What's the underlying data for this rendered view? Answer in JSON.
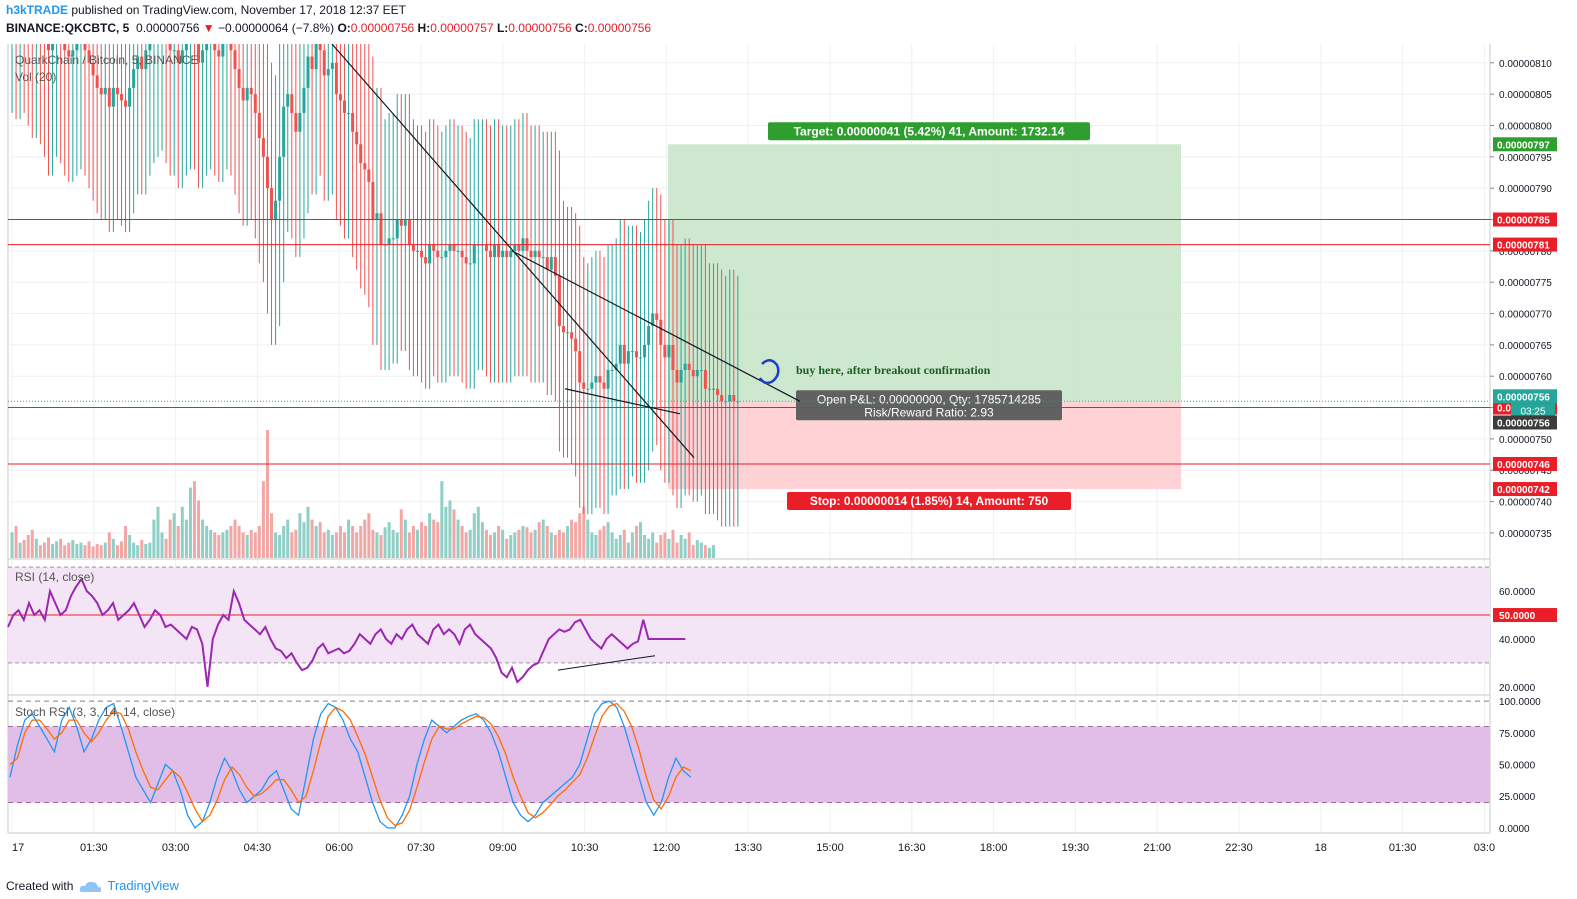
{
  "header": {
    "user": "h3kTRADE",
    "published": "published on TradingView.com, November 17, 2018 12:37 EET",
    "symbol": "BINANCE:QKCBTC, 5",
    "last": "0.00000756",
    "change_arrow": "▼",
    "change": "−0.00000064 (−7.8%)",
    "o_label": "O:",
    "o": "0.00000756",
    "h_label": "H:",
    "h": "0.00000757",
    "l_label": "L:",
    "l": "0.00000756",
    "c_label": "C:",
    "c": "0.00000756"
  },
  "footer": {
    "created_with": "Created with",
    "brand": "TradingView",
    "icon": "tradingview-cloud-icon"
  },
  "colors": {
    "up": "#26a69a",
    "down": "#ef5350",
    "level": "#e91e28",
    "target_zone": "#c8e6c9",
    "stop_zone": "#ffcdd2",
    "rsi": "#9c27b0",
    "rsi_band": "#f3e5f5",
    "stoch_k": "#2196f3",
    "stoch_d": "#ff6d00",
    "stoch_band": "#e1bee7",
    "text_annot": "#1b5e20"
  },
  "chart_data": [
    {
      "type": "candlestick",
      "title": "QuarkChain / Bitcoin, 5, BINANCE",
      "volume_label": "Vol (20)",
      "x_ticks": [
        "17",
        "01:30",
        "03:00",
        "04:30",
        "06:00",
        "07:30",
        "09:00",
        "10:30",
        "12:00",
        "13:30",
        "15:00",
        "16:30",
        "18:00",
        "19:30",
        "21:00",
        "22:30",
        "18",
        "01:30",
        "03:0"
      ],
      "y_ticks": [
        "0.00000810",
        "0.00000805",
        "0.00000800",
        "0.00000795",
        "0.00000790",
        "0.00000785",
        "0.00000780",
        "0.00000775",
        "0.00000770",
        "0.00000765",
        "0.00000760",
        "0.00000755",
        "0.00000750",
        "0.00000745",
        "0.00000740",
        "0.00000735"
      ],
      "ylim": [
        7.31e-06,
        8.13e-06
      ],
      "closes": [
        8.22e-06,
        8.21e-06,
        8.23e-06,
        8.22e-06,
        8.2e-06,
        8.18e-06,
        8.19e-06,
        8.17e-06,
        8.15e-06,
        8.12e-06,
        8.15e-06,
        8.16e-06,
        8.14e-06,
        8.12e-06,
        8.11e-06,
        8.12e-06,
        8.13e-06,
        8.14e-06,
        8.12e-06,
        8.1e-06,
        8.08e-06,
        8.06e-06,
        8.05e-06,
        8.06e-06,
        8.03e-06,
        8.06e-06,
        8.05e-06,
        8.04e-06,
        8.03e-06,
        8.06e-06,
        8.09e-06,
        8.11e-06,
        8.09e-06,
        8.12e-06,
        8.14e-06,
        8.15e-06,
        8.16e-06,
        8.18e-06,
        8.14e-06,
        8.12e-06,
        8.12e-06,
        8.1e-06,
        8.12e-06,
        8.13e-06,
        8.15e-06,
        8.13e-06,
        8.1e-06,
        8.12e-06,
        8.13e-06,
        8.14e-06,
        8.12e-06,
        8.11e-06,
        8.13e-06,
        8.14e-06,
        8.12e-06,
        8.09e-06,
        8.06e-06,
        8.04e-06,
        8.06e-06,
        8.05e-06,
        8.02e-06,
        7.98e-06,
        7.95e-06,
        7.9e-06,
        7.85e-06,
        7.88e-06,
        7.95e-06,
        8.03e-06,
        8.05e-06,
        8.02e-06,
        7.99e-06,
        8.02e-06,
        8.06e-06,
        8.11e-06,
        8.09e-06,
        8.13e-06,
        8.12e-06,
        8.08e-06,
        8.09e-06,
        8.1e-06,
        8.05e-06,
        8.04e-06,
        8.02e-06,
        8.02e-06,
        7.99e-06,
        7.97e-06,
        7.94e-06,
        7.93e-06,
        7.91e-06,
        7.85e-06,
        7.86e-06,
        7.81e-06,
        7.81e-06,
        7.82e-06,
        7.82e-06,
        7.85e-06,
        7.84e-06,
        7.85e-06,
        7.81e-06,
        7.8e-06,
        7.8e-06,
        7.79e-06,
        7.78e-06,
        7.81e-06,
        7.8e-06,
        7.79e-06,
        7.79e-06,
        7.8e-06,
        7.81e-06,
        7.8e-06,
        7.8e-06,
        7.79e-06,
        7.78e-06,
        7.78e-06,
        7.81e-06,
        7.81e-06,
        7.81e-06,
        7.8e-06,
        7.79e-06,
        7.81e-06,
        7.79e-06,
        7.8e-06,
        7.79e-06,
        7.8e-06,
        7.81e-06,
        7.8e-06,
        7.82e-06,
        7.8e-06,
        7.79e-06,
        7.8e-06,
        7.79e-06,
        7.79e-06,
        7.77e-06,
        7.79e-06,
        7.76e-06,
        7.68e-06,
        7.67e-06,
        7.67e-06,
        7.66e-06,
        7.64e-06,
        7.59e-06,
        7.58e-06,
        7.58e-06,
        7.59e-06,
        7.6e-06,
        7.59e-06,
        7.58e-06,
        7.61e-06,
        7.61e-06,
        7.62e-06,
        7.65e-06,
        7.62e-06,
        7.64e-06,
        7.64e-06,
        7.63e-06,
        7.63e-06,
        7.65e-06,
        7.68e-06,
        7.7e-06,
        7.69e-06,
        7.65e-06,
        7.63e-06,
        7.65e-06,
        7.61e-06,
        7.59e-06,
        7.61e-06,
        7.62e-06,
        7.61e-06,
        7.6e-06,
        7.61e-06,
        7.61e-06,
        7.58e-06,
        7.58e-06,
        7.58e-06,
        7.57e-06,
        7.56e-06,
        7.56e-06,
        7.57e-06,
        7.56e-06,
        7.56e-06
      ],
      "volumes": [
        20,
        25,
        12,
        14,
        18,
        22,
        15,
        10,
        12,
        16,
        11,
        13,
        15,
        10,
        12,
        14,
        11,
        12,
        10,
        13,
        9,
        11,
        10,
        12,
        20,
        15,
        10,
        13,
        25,
        18,
        12,
        10,
        14,
        11,
        12,
        30,
        40,
        20,
        15,
        30,
        35,
        25,
        40,
        30,
        55,
        60,
        45,
        30,
        25,
        22,
        20,
        18,
        20,
        22,
        25,
        30,
        25,
        20,
        18,
        22,
        20,
        25,
        60,
        100,
        35,
        20,
        18,
        25,
        30,
        20,
        22,
        35,
        28,
        40,
        30,
        25,
        28,
        20,
        22,
        18,
        20,
        25,
        20,
        30,
        25,
        20,
        25,
        30,
        35,
        22,
        20,
        18,
        24,
        28,
        22,
        20,
        38,
        30,
        20,
        25,
        22,
        28,
        25,
        35,
        30,
        28,
        60,
        40,
        45,
        38,
        30,
        25,
        20,
        22,
        35,
        40,
        28,
        22,
        18,
        20,
        25,
        22,
        15,
        18,
        20,
        22,
        25,
        24,
        20,
        22,
        28,
        30,
        25,
        20,
        18,
        22,
        20,
        25,
        30,
        28,
        35,
        40,
        30,
        20,
        18,
        22,
        25,
        28,
        20,
        15,
        18,
        22,
        12,
        20,
        25,
        28,
        18,
        15,
        20,
        12,
        18,
        20,
        15,
        22,
        12,
        18,
        15,
        20,
        10,
        14,
        12,
        10,
        8,
        10
      ],
      "levels": [
        7.85e-06,
        7.81e-06,
        7.55e-06,
        7.46e-06
      ],
      "level_labels": [
        "0.00000785",
        "0.00000781",
        "0.00000755",
        "0.00000746"
      ],
      "position": {
        "entry": 7.56e-06,
        "target": 7.97e-06,
        "stop": 7.42e-06,
        "entry_label": "0.00000756",
        "target_label": "0.00000797",
        "stop_label": "0.00000742",
        "target_text": "Target: 0.00000041 (5.42%) 41, Amount: 1732.14",
        "stop_text": "Stop: 0.00000014 (1.85%) 14, Amount: 750",
        "pnl_text": "Open P&L: 0.00000000, Qty: 1785714285",
        "ratio_text": "Risk/Reward Ratio: 2.93"
      },
      "last_price_label": "0.00000756",
      "countdown": "03:25",
      "current_label": "0.00000756",
      "annotation": "buy here, after breakout confirmation"
    },
    {
      "type": "line",
      "title": "RSI (14, close)",
      "y_ticks": [
        "60.0000",
        "40.0000",
        "20.0000"
      ],
      "ylim": [
        17,
        73
      ],
      "level": 50,
      "level_label": "50.0000",
      "band": [
        30,
        70
      ],
      "values": [
        45,
        50,
        52,
        48,
        55,
        50,
        52,
        48,
        60,
        55,
        50,
        52,
        58,
        62,
        65,
        60,
        58,
        55,
        50,
        52,
        55,
        48,
        50,
        52,
        55,
        50,
        45,
        48,
        52,
        50,
        45,
        46,
        44,
        42,
        40,
        45,
        44,
        38,
        20,
        40,
        46,
        50,
        48,
        60,
        55,
        48,
        46,
        44,
        42,
        45,
        40,
        36,
        35,
        32,
        34,
        30,
        27,
        28,
        31,
        36,
        38,
        34,
        35,
        36,
        34,
        35,
        38,
        42,
        40,
        38,
        42,
        44,
        40,
        38,
        42,
        40,
        44,
        46,
        42,
        40,
        38,
        44,
        46,
        42,
        44,
        42,
        38,
        44,
        46,
        42,
        40,
        38,
        36,
        32,
        26,
        24,
        28,
        22,
        24,
        27,
        29,
        30,
        35,
        40,
        42,
        44,
        43,
        44,
        47,
        48,
        44,
        40,
        38,
        36,
        40,
        42,
        40,
        38,
        36,
        38,
        39,
        48,
        40,
        40,
        40,
        40,
        40,
        40,
        40,
        40
      ],
      "values_tail": "flat"
    },
    {
      "type": "line",
      "title": "Stoch RSI (3, 3, 14, 14, close)",
      "y_ticks": [
        "100.0000",
        "75.0000",
        "50.0000",
        "25.0000",
        "0.0000"
      ],
      "ylim": [
        -4,
        104
      ],
      "band": [
        20,
        80
      ],
      "series": [
        {
          "name": "K",
          "values": [
            40,
            65,
            85,
            90,
            80,
            70,
            60,
            85,
            95,
            80,
            60,
            70,
            85,
            95,
            98,
            80,
            60,
            40,
            30,
            20,
            35,
            50,
            45,
            30,
            10,
            0,
            5,
            20,
            40,
            55,
            45,
            30,
            20,
            25,
            30,
            40,
            45,
            30,
            15,
            10,
            40,
            70,
            90,
            98,
            95,
            85,
            70,
            60,
            40,
            20,
            5,
            0,
            0,
            10,
            25,
            50,
            70,
            85,
            80,
            75,
            80,
            85,
            88,
            90,
            85,
            75,
            60,
            40,
            20,
            10,
            5,
            10,
            20,
            25,
            30,
            35,
            40,
            50,
            70,
            90,
            98,
            100,
            95,
            80,
            60,
            40,
            20,
            10,
            20,
            40,
            55,
            45,
            40
          ]
        },
        {
          "name": "D",
          "values": [
            50,
            55,
            75,
            85,
            85,
            78,
            70,
            75,
            85,
            85,
            75,
            68,
            75,
            85,
            92,
            90,
            78,
            60,
            45,
            32,
            30,
            38,
            45,
            40,
            28,
            15,
            5,
            10,
            22,
            38,
            48,
            42,
            32,
            25,
            27,
            32,
            38,
            38,
            30,
            20,
            25,
            45,
            68,
            88,
            95,
            92,
            85,
            72,
            58,
            40,
            22,
            8,
            2,
            4,
            14,
            32,
            52,
            70,
            80,
            78,
            78,
            82,
            85,
            88,
            87,
            82,
            72,
            58,
            40,
            25,
            12,
            8,
            12,
            18,
            25,
            30,
            36,
            42,
            55,
            72,
            88,
            96,
            98,
            92,
            80,
            62,
            40,
            22,
            15,
            25,
            40,
            48,
            45
          ]
        }
      ]
    }
  ]
}
